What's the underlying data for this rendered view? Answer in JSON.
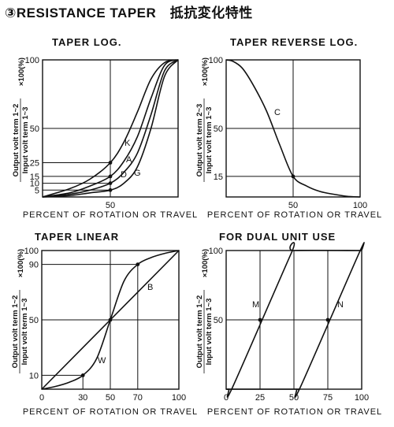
{
  "page_title": "③RESISTANCE TAPER　抵抗変化特性",
  "chart_data": [
    {
      "type": "line",
      "title": "TAPER LOG.",
      "xlabel": "PERCENT OF ROTATION OR TRAVEL",
      "ylabel_top": "Output volt term 1~2",
      "ylabel_bottom": "Input volt term 1~3",
      "ylabel_factor": "×100(%)",
      "xlim": [
        0,
        100
      ],
      "ylim": [
        0,
        100
      ],
      "xticks": [
        "50"
      ],
      "yticks": [
        "5",
        "10",
        "15",
        "25",
        "50",
        "100"
      ],
      "series": [
        {
          "name": "K",
          "x": [
            0,
            20,
            35,
            50,
            60,
            70,
            80,
            90,
            100
          ],
          "y": [
            0,
            6,
            13,
            25,
            40,
            62,
            86,
            98,
            100
          ]
        },
        {
          "name": "A",
          "x": [
            0,
            20,
            35,
            50,
            60,
            70,
            80,
            90,
            100
          ],
          "y": [
            0,
            3,
            8,
            15,
            26,
            44,
            72,
            96,
            100
          ]
        },
        {
          "name": "D",
          "x": [
            0,
            20,
            35,
            50,
            60,
            70,
            80,
            90,
            100
          ],
          "y": [
            0,
            2,
            5,
            10,
            18,
            32,
            60,
            92,
            100
          ]
        },
        {
          "name": "G",
          "x": [
            0,
            20,
            35,
            50,
            60,
            70,
            80,
            90,
            100
          ],
          "y": [
            0,
            1,
            3,
            5,
            10,
            22,
            50,
            88,
            100
          ]
        }
      ]
    },
    {
      "type": "line",
      "title": "TAPER REVERSE LOG.",
      "xlabel": "PERCENT OF ROTATION OR TRAVEL",
      "ylabel_top": "Output volt term 2~3",
      "ylabel_bottom": "Input volt term 1~3",
      "ylabel_factor": "×100(%)",
      "xlim": [
        0,
        100
      ],
      "ylim": [
        0,
        100
      ],
      "xticks": [
        "50",
        "100"
      ],
      "yticks": [
        "15",
        "50",
        "100"
      ],
      "series": [
        {
          "name": "C",
          "x": [
            0,
            5,
            12,
            20,
            30,
            40,
            50,
            60,
            70,
            80,
            90,
            100
          ],
          "y": [
            100,
            99,
            94,
            82,
            63,
            38,
            15,
            8,
            4,
            2,
            0.5,
            0
          ]
        }
      ]
    },
    {
      "type": "line",
      "title": "TAPER LINEAR",
      "xlabel": "PERCENT OF ROTATION OR TRAVEL",
      "ylabel_top": "Output volt term 1~2",
      "ylabel_bottom": "Input volt term 1~3",
      "ylabel_factor": "×100(%)",
      "xlim": [
        0,
        100
      ],
      "ylim": [
        0,
        100
      ],
      "xticks": [
        "0",
        "30",
        "50",
        "70",
        "100"
      ],
      "yticks": [
        "10",
        "50",
        "90",
        "100"
      ],
      "series": [
        {
          "name": "B",
          "x": [
            0,
            50,
            100
          ],
          "y": [
            0,
            50,
            100
          ]
        },
        {
          "name": "W",
          "x": [
            0,
            10,
            20,
            30,
            40,
            50,
            60,
            70,
            80,
            90,
            100
          ],
          "y": [
            0,
            2,
            5,
            10,
            22,
            50,
            78,
            90,
            95,
            98,
            100
          ]
        }
      ]
    },
    {
      "type": "line",
      "title": "FOR DUAL  UNIT  USE",
      "xlabel": "PERCENT OF ROTATION OR TRAVEL",
      "ylabel_top": "Output volt term 1~2",
      "ylabel_bottom": "Input volt term 1~3",
      "ylabel_factor": "×100(%)",
      "xlim": [
        0,
        100
      ],
      "ylim": [
        0,
        100
      ],
      "xticks": [
        "0",
        "25",
        "50",
        "75",
        "100"
      ],
      "yticks": [
        "50",
        "100"
      ],
      "series": [
        {
          "name": "M",
          "x": [
            0,
            2,
            5,
            48,
            50,
            100
          ],
          "y": [
            0,
            0,
            2,
            98,
            100,
            100
          ]
        },
        {
          "name": "N",
          "x": [
            0,
            50,
            52,
            55,
            98,
            100
          ],
          "y": [
            0,
            0,
            0,
            2,
            98,
            100
          ]
        }
      ]
    }
  ]
}
